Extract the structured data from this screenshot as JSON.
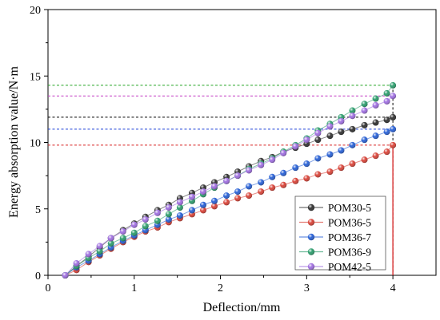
{
  "chart_data": {
    "type": "line",
    "title": "",
    "xlabel": "Deflection/mm",
    "ylabel": "Energy absorption value/N·m",
    "xlim": [
      0,
      4.5
    ],
    "ylim": [
      0,
      20
    ],
    "x_ticks": [
      0,
      1,
      2,
      3,
      4
    ],
    "y_ticks": [
      0,
      5,
      10,
      15,
      20
    ],
    "x_tick_labels": [
      "0",
      "1",
      "2",
      "3",
      "4"
    ],
    "y_tick_labels": [
      "0",
      "5",
      "10",
      "15",
      "20"
    ],
    "grid": false,
    "legend_position": "bottom-right",
    "series": [
      {
        "name": "POM30-5",
        "color": "#333333",
        "x": [
          0.2,
          0.33,
          0.47,
          0.6,
          0.73,
          0.87,
          1.0,
          1.13,
          1.27,
          1.4,
          1.53,
          1.67,
          1.8,
          1.93,
          2.07,
          2.2,
          2.33,
          2.47,
          2.6,
          2.73,
          2.87,
          3.0,
          3.13,
          3.27,
          3.4,
          3.53,
          3.67,
          3.8,
          3.93,
          4.0
        ],
        "y": [
          0.0,
          0.7,
          1.4,
          2.1,
          2.8,
          3.4,
          3.9,
          4.4,
          4.9,
          5.3,
          5.8,
          6.2,
          6.6,
          7.0,
          7.4,
          7.8,
          8.2,
          8.6,
          8.9,
          9.3,
          9.6,
          9.9,
          10.2,
          10.5,
          10.8,
          11.0,
          11.3,
          11.5,
          11.7,
          11.9
        ]
      },
      {
        "name": "POM36-5",
        "color": "#d9453a",
        "x": [
          0.2,
          0.33,
          0.47,
          0.6,
          0.73,
          0.87,
          1.0,
          1.13,
          1.27,
          1.4,
          1.53,
          1.67,
          1.8,
          1.93,
          2.07,
          2.2,
          2.33,
          2.47,
          2.6,
          2.73,
          2.87,
          3.0,
          3.13,
          3.27,
          3.4,
          3.53,
          3.67,
          3.8,
          3.93,
          4.0
        ],
        "y": [
          0.0,
          0.4,
          1.0,
          1.5,
          2.0,
          2.5,
          2.9,
          3.3,
          3.6,
          4.0,
          4.3,
          4.6,
          4.9,
          5.2,
          5.5,
          5.8,
          6.0,
          6.3,
          6.6,
          6.8,
          7.1,
          7.3,
          7.6,
          7.8,
          8.1,
          8.4,
          8.7,
          9.0,
          9.3,
          9.8
        ]
      },
      {
        "name": "POM36-7",
        "color": "#2a62d6",
        "x": [
          0.2,
          0.33,
          0.47,
          0.6,
          0.73,
          0.87,
          1.0,
          1.13,
          1.27,
          1.4,
          1.53,
          1.67,
          1.8,
          1.93,
          2.07,
          2.2,
          2.33,
          2.47,
          2.6,
          2.73,
          2.87,
          3.0,
          3.13,
          3.27,
          3.4,
          3.53,
          3.67,
          3.8,
          3.93,
          4.0
        ],
        "y": [
          0.0,
          0.6,
          1.1,
          1.6,
          2.1,
          2.6,
          3.0,
          3.4,
          3.8,
          4.2,
          4.5,
          4.9,
          5.3,
          5.6,
          6.0,
          6.3,
          6.7,
          7.0,
          7.4,
          7.7,
          8.1,
          8.4,
          8.8,
          9.1,
          9.4,
          9.8,
          10.2,
          10.5,
          10.8,
          11.0
        ]
      },
      {
        "name": "POM36-9",
        "color": "#2e9e6e",
        "x": [
          0.2,
          0.33,
          0.47,
          0.6,
          0.73,
          0.87,
          1.0,
          1.13,
          1.27,
          1.4,
          1.53,
          1.67,
          1.8,
          1.93,
          2.07,
          2.2,
          2.33,
          2.47,
          2.6,
          2.73,
          2.87,
          3.0,
          3.13,
          3.27,
          3.4,
          3.53,
          3.67,
          3.8,
          3.93,
          4.0
        ],
        "y": [
          0.0,
          0.7,
          1.3,
          1.8,
          2.4,
          2.8,
          3.2,
          3.7,
          4.1,
          4.6,
          5.1,
          5.6,
          6.1,
          6.6,
          7.1,
          7.5,
          8.0,
          8.4,
          8.8,
          9.3,
          9.8,
          10.3,
          10.9,
          11.4,
          11.9,
          12.4,
          12.9,
          13.3,
          13.7,
          14.3
        ]
      },
      {
        "name": "POM42-5",
        "color": "#a070e0",
        "x": [
          0.2,
          0.33,
          0.47,
          0.6,
          0.73,
          0.87,
          1.0,
          1.13,
          1.27,
          1.4,
          1.53,
          1.67,
          1.8,
          1.93,
          2.07,
          2.2,
          2.33,
          2.47,
          2.6,
          2.73,
          2.87,
          3.0,
          3.13,
          3.27,
          3.4,
          3.53,
          3.67,
          3.8,
          3.93,
          4.0
        ],
        "y": [
          0.0,
          0.9,
          1.6,
          2.2,
          2.8,
          3.3,
          3.8,
          4.2,
          4.7,
          5.1,
          5.5,
          5.9,
          6.3,
          6.7,
          7.1,
          7.5,
          7.9,
          8.3,
          8.7,
          9.2,
          9.7,
          10.2,
          10.7,
          11.2,
          11.6,
          12.0,
          12.4,
          12.8,
          13.1,
          13.5
        ]
      }
    ],
    "reference_lines": [
      {
        "series": "POM36-9",
        "y": 14.3,
        "color": "#22a322"
      },
      {
        "series": "POM42-5",
        "y": 13.5,
        "color": "#c33bc3"
      },
      {
        "series": "POM30-5",
        "y": 11.9,
        "color": "#000000"
      },
      {
        "series": "POM36-7",
        "y": 11.0,
        "color": "#1a3fd6"
      },
      {
        "series": "POM36-5",
        "y": 9.8,
        "color": "#d62020"
      }
    ],
    "reference_x": 4.0
  }
}
